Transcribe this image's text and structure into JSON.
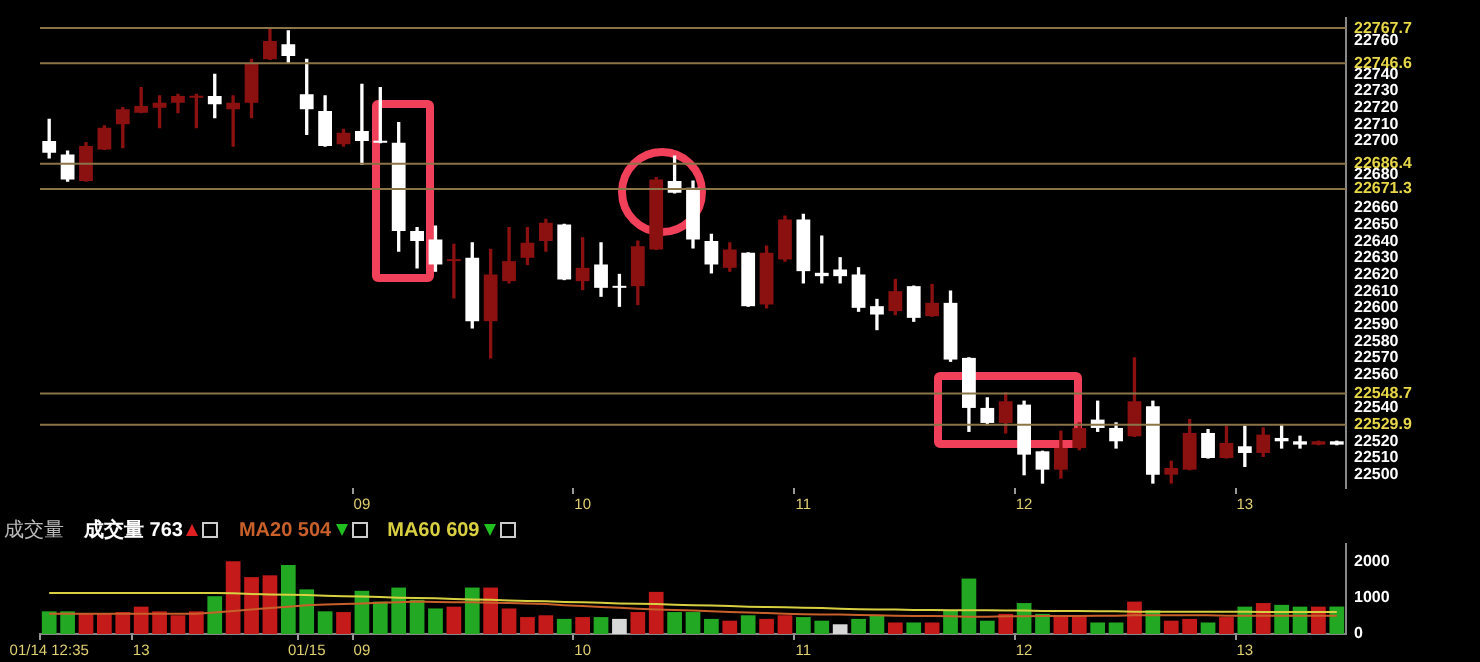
{
  "chart_data": [
    {
      "type": "candlestick",
      "categories": [
        null,
        null,
        null,
        null,
        null,
        null,
        null,
        null,
        null,
        null,
        null,
        null,
        null,
        null,
        null,
        null,
        null,
        "09",
        null,
        null,
        null,
        null,
        null,
        null,
        null,
        null,
        null,
        null,
        null,
        "10",
        null,
        null,
        null,
        null,
        null,
        null,
        null,
        null,
        null,
        null,
        null,
        "11",
        null,
        null,
        null,
        null,
        null,
        null,
        null,
        null,
        null,
        null,
        null,
        "12",
        null,
        null,
        null,
        null,
        null,
        null,
        null,
        null,
        null,
        null,
        null,
        "13",
        null,
        null,
        null,
        null,
        null
      ],
      "ohlc": [
        [
          22700,
          22713,
          22690,
          22693
        ],
        [
          22692,
          22694,
          22676,
          22677
        ],
        [
          22676,
          22699,
          22676,
          22697
        ],
        [
          22695,
          22709,
          22695,
          22708
        ],
        [
          22710,
          22720,
          22696,
          22719
        ],
        [
          22717,
          22732,
          22717,
          22721
        ],
        [
          22720,
          22727,
          22708,
          22723
        ],
        [
          22723,
          22728,
          22717,
          22727
        ],
        [
          22726,
          22728,
          22708,
          22727
        ],
        [
          22727,
          22740,
          22714,
          22722
        ],
        [
          22719,
          22727,
          22697,
          22723
        ],
        [
          22723,
          22749,
          22714,
          22747
        ],
        [
          22749,
          22768,
          22749,
          22760
        ],
        [
          22758,
          22766,
          22747,
          22751
        ],
        [
          22728,
          22749,
          22704,
          22719
        ],
        [
          22718,
          22727,
          22697,
          22697
        ],
        [
          22698,
          22707,
          22697,
          22705
        ],
        [
          22706,
          22734,
          22686,
          22700
        ],
        [
          22700,
          22732,
          22699,
          22699
        ],
        [
          22699,
          22711,
          22634,
          22646
        ],
        [
          22646,
          22648,
          22624,
          22640
        ],
        [
          22641,
          22649,
          22622,
          22626
        ],
        [
          22628,
          22638,
          22606,
          22629
        ],
        [
          22630,
          22639,
          22588,
          22592
        ],
        [
          22592,
          22635,
          22570,
          22620
        ],
        [
          22616,
          22648,
          22615,
          22628
        ],
        [
          22630,
          22648,
          22626,
          22639
        ],
        [
          22640,
          22653,
          22634,
          22651
        ],
        [
          22650,
          22650,
          22617,
          22617
        ],
        [
          22616,
          22642,
          22611,
          22624
        ],
        [
          22626,
          22639,
          22607,
          22612
        ],
        [
          22613,
          22620,
          22601,
          22612
        ],
        [
          22613,
          22640,
          22602,
          22637
        ],
        [
          22635,
          22678,
          22635,
          22677
        ],
        [
          22676,
          22691,
          22669,
          22669
        ],
        [
          22672,
          22676,
          22636,
          22641
        ],
        [
          22640,
          22644,
          22621,
          22626
        ],
        [
          22624,
          22639,
          22622,
          22635
        ],
        [
          22633,
          22633,
          22601,
          22601
        ],
        [
          22602,
          22637,
          22600,
          22633
        ],
        [
          22629,
          22655,
          22628,
          22653
        ],
        [
          22653,
          22656,
          22615,
          22622
        ],
        [
          22621,
          22643,
          22615,
          22619
        ],
        [
          22623,
          22630,
          22615,
          22619
        ],
        [
          22620,
          22624,
          22598,
          22600
        ],
        [
          22601,
          22605,
          22587,
          22596
        ],
        [
          22598,
          22617,
          22596,
          22610
        ],
        [
          22613,
          22613,
          22592,
          22594
        ],
        [
          22595,
          22614,
          22595,
          22603
        ],
        [
          22603,
          22610,
          22568,
          22569
        ],
        [
          22570,
          22570,
          22526,
          22540
        ],
        [
          22540,
          22546,
          22530,
          22531
        ],
        [
          22531,
          22549,
          22525,
          22544
        ],
        [
          22542,
          22544,
          22500,
          22512
        ],
        [
          22514,
          22514,
          22495,
          22503
        ],
        [
          22503,
          22526,
          22498,
          22516
        ],
        [
          22516,
          22531,
          22515,
          22528
        ],
        [
          22533,
          22544,
          22526,
          22528
        ],
        [
          22528,
          22531,
          22516,
          22520
        ],
        [
          22523,
          22570,
          22523,
          22544
        ],
        [
          22541,
          22544,
          22495,
          22500
        ],
        [
          22500,
          22508,
          22495,
          22504
        ],
        [
          22503,
          22533,
          22503,
          22525
        ],
        [
          22525,
          22527,
          22510,
          22510
        ],
        [
          22510,
          22529,
          22510,
          22519
        ],
        [
          22517,
          22529,
          22505,
          22513
        ],
        [
          22513,
          22528,
          22511,
          22524
        ],
        [
          22522,
          22530,
          22516,
          22520
        ],
        [
          22520,
          22523,
          22516,
          22518
        ],
        [
          22518,
          22520,
          22518,
          22520
        ],
        [
          22520,
          22520,
          22518,
          22518
        ]
      ],
      "colors": [
        "#ffffff",
        "#ffffff",
        "#8b1010",
        "#8b1010",
        "#8b1010",
        "#8b1010",
        "#8b1010",
        "#8b1010",
        "#8b1010",
        "#ffffff",
        "#8b1010",
        "#8b1010",
        "#8b1010",
        "#ffffff",
        "#ffffff",
        "#ffffff",
        "#8b1010",
        "#ffffff",
        "#ffffff",
        "#ffffff",
        "#ffffff",
        "#ffffff",
        "#8b1010",
        "#ffffff",
        "#8b1010",
        "#8b1010",
        "#8b1010",
        "#8b1010",
        "#ffffff",
        "#8b1010",
        "#ffffff",
        "#ffffff",
        "#8b1010",
        "#8b1010",
        "#ffffff",
        "#ffffff",
        "#ffffff",
        "#8b1010",
        "#ffffff",
        "#8b1010",
        "#8b1010",
        "#ffffff",
        "#ffffff",
        "#ffffff",
        "#ffffff",
        "#ffffff",
        "#8b1010",
        "#ffffff",
        "#8b1010",
        "#ffffff",
        "#ffffff",
        "#ffffff",
        "#8b1010",
        "#ffffff",
        "#ffffff",
        "#8b1010",
        "#8b1010",
        "#ffffff",
        "#ffffff",
        "#8b1010",
        "#ffffff",
        "#8b1010",
        "#8b1010",
        "#ffffff",
        "#8b1010",
        "#ffffff",
        "#8b1010",
        "#ffffff",
        "#ffffff",
        "#8b1010",
        "#ffffff"
      ],
      "ylim": [
        22492,
        22774
      ],
      "yticks": [
        22500,
        22510,
        22520,
        22540,
        22560,
        22570,
        22580,
        22590,
        22600,
        22610,
        22620,
        22630,
        22640,
        22650,
        22660,
        22680,
        22700,
        22710,
        22720,
        22730,
        22740,
        22760
      ],
      "ref_lines": [
        {
          "axis": "y",
          "value": 22767.7,
          "label": "22767.7",
          "color": "#8a7448"
        },
        {
          "axis": "y",
          "value": 22746.6,
          "label": "22746.6",
          "color": "#8a7448"
        },
        {
          "axis": "y",
          "value": 22686.4,
          "label": "22686.4",
          "color": "#8a7448"
        },
        {
          "axis": "y",
          "value": 22671.3,
          "label": "22671.3",
          "color": "#8a7448"
        },
        {
          "axis": "y",
          "value": 22548.7,
          "label": "22548.7",
          "color": "#8a7448"
        },
        {
          "axis": "y",
          "value": 22529.9,
          "label": "22529.9",
          "color": "#8a7448"
        }
      ]
    },
    {
      "type": "bar",
      "title": "成交量",
      "legend": "top left",
      "marker": "none",
      "categories": [
        "01/14 12:35",
        null,
        null,
        null,
        null,
        "13",
        null,
        null,
        null,
        null,
        null,
        null,
        null,
        null,
        "01/15",
        null,
        null,
        "09",
        null,
        null,
        null,
        null,
        null,
        null,
        null,
        null,
        null,
        null,
        null,
        "10",
        null,
        null,
        null,
        null,
        null,
        null,
        null,
        null,
        null,
        null,
        null,
        "11",
        null,
        null,
        null,
        null,
        null,
        null,
        null,
        null,
        null,
        null,
        null,
        "12",
        null,
        null,
        null,
        null,
        null,
        null,
        null,
        null,
        null,
        null,
        null,
        "13",
        null,
        null,
        null,
        null,
        null
      ],
      "series": [
        {
          "name": "成交量 763",
          "type": "bar",
          "colors": [
            "#22a822",
            "#22a822",
            "#c41a1a",
            "#c41a1a",
            "#c41a1a",
            "#c41a1a",
            "#c41a1a",
            "#c41a1a",
            "#c41a1a",
            "#22a822",
            "#c41a1a",
            "#c41a1a",
            "#c41a1a",
            "#22a822",
            "#22a822",
            "#22a822",
            "#c41a1a",
            "#22a822",
            "#22a822",
            "#22a822",
            "#22a822",
            "#22a822",
            "#c41a1a",
            "#22a822",
            "#c41a1a",
            "#c41a1a",
            "#c41a1a",
            "#c41a1a",
            "#22a822",
            "#c41a1a",
            "#22a822",
            "#d8d8d8",
            "#c41a1a",
            "#c41a1a",
            "#22a822",
            "#22a822",
            "#22a822",
            "#c41a1a",
            "#22a822",
            "#c41a1a",
            "#c41a1a",
            "#22a822",
            "#22a822",
            "#d8d8d8",
            "#22a822",
            "#22a822",
            "#c41a1a",
            "#22a822",
            "#c41a1a",
            "#22a822",
            "#22a822",
            "#22a822",
            "#c41a1a",
            "#22a822",
            "#22a822",
            "#c41a1a",
            "#c41a1a",
            "#22a822",
            "#22a822",
            "#c41a1a",
            "#22a822",
            "#c41a1a",
            "#c41a1a",
            "#22a822",
            "#c41a1a",
            "#22a822",
            "#c41a1a",
            "#22a822",
            "#22a822",
            "#c41a1a",
            "#22a822"
          ],
          "values": [
            630,
            630,
            560,
            560,
            610,
            760,
            630,
            520,
            630,
            1050,
            2020,
            1580,
            1630,
            1920,
            1240,
            630,
            610,
            1200,
            900,
            1290,
            950,
            710,
            760,
            1290,
            1290,
            710,
            470,
            520,
            420,
            470,
            470,
            420,
            610,
            1170,
            610,
            610,
            420,
            370,
            520,
            420,
            520,
            470,
            370,
            270,
            420,
            520,
            320,
            320,
            320,
            660,
            1540,
            370,
            560,
            860,
            560,
            520,
            520,
            320,
            320,
            900,
            660,
            370,
            420,
            320,
            470,
            760,
            860,
            810,
            760,
            760,
            763
          ]
        },
        {
          "name": "MA20 504",
          "type": "line",
          "color": "#c8602a",
          "values": [
            560,
            560,
            560,
            560,
            560,
            560,
            560,
            560,
            560,
            600,
            640,
            680,
            720,
            760,
            800,
            820,
            830,
            850,
            870,
            880,
            900,
            890,
            880,
            880,
            870,
            860,
            850,
            830,
            800,
            780,
            750,
            730,
            700,
            680,
            670,
            650,
            630,
            610,
            600,
            580,
            560,
            550,
            540,
            540,
            530,
            520,
            510,
            500,
            500,
            490,
            480,
            480,
            490,
            490,
            500,
            500,
            500,
            510,
            510,
            520,
            520,
            520,
            520,
            520,
            510,
            510,
            510,
            510,
            510,
            510,
            504
          ]
        },
        {
          "name": "MA60 609",
          "type": "line",
          "color": "#d8d040",
          "values": [
            1140,
            1140,
            1140,
            1140,
            1140,
            1140,
            1140,
            1140,
            1140,
            1140,
            1130,
            1110,
            1100,
            1090,
            1080,
            1060,
            1050,
            1040,
            1030,
            1010,
            1000,
            990,
            970,
            960,
            950,
            930,
            920,
            910,
            890,
            880,
            870,
            850,
            840,
            830,
            810,
            800,
            790,
            780,
            760,
            750,
            740,
            730,
            720,
            700,
            690,
            680,
            680,
            670,
            670,
            660,
            660,
            660,
            650,
            650,
            640,
            640,
            640,
            630,
            630,
            620,
            620,
            620,
            620,
            620,
            620,
            620,
            610,
            610,
            610,
            610,
            609
          ]
        }
      ],
      "ylim": [
        0,
        2500
      ],
      "yticks": [
        0,
        1000,
        2000
      ]
    }
  ]
}
